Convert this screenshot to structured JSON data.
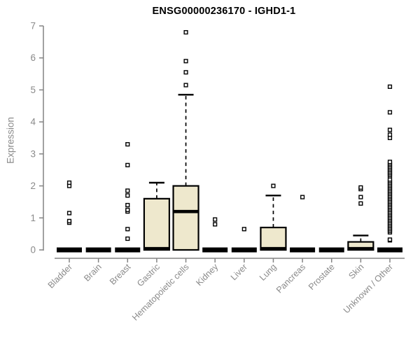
{
  "chart_data": {
    "type": "boxplot",
    "title": "ENSG00000236170 - IGHD1-1",
    "ylabel": "Expression",
    "xlabel": "",
    "ylim": [
      0,
      7
    ],
    "yticks": [
      0,
      1,
      2,
      3,
      4,
      5,
      6,
      7
    ],
    "grid": false,
    "legend": "none",
    "colors": {
      "box_fill": "#EEE8CD",
      "box_stroke": "#000000",
      "axis": "#848484",
      "tick_text": "#8a8a8a",
      "title_text": "#000000"
    },
    "categories": [
      "Bladder",
      "Brain",
      "Breast",
      "Gastric",
      "Hematopoietic cells",
      "Kidney",
      "Liver",
      "Lung",
      "Pancreas",
      "Prostate",
      "Skin",
      "Unknown / Other"
    ],
    "series": [
      {
        "category": "Bladder",
        "q1": 0,
        "median": 0,
        "q3": 0,
        "whisker_low": 0,
        "whisker_high": 0,
        "outliers": [
          0.85,
          0.9,
          1.15,
          2.0,
          2.1
        ]
      },
      {
        "category": "Brain",
        "q1": 0,
        "median": 0,
        "q3": 0,
        "whisker_low": 0,
        "whisker_high": 0,
        "outliers": []
      },
      {
        "category": "Breast",
        "q1": 0,
        "median": 0,
        "q3": 0,
        "whisker_low": 0,
        "whisker_high": 0,
        "outliers": [
          0.35,
          0.65,
          1.2,
          1.25,
          1.4,
          1.7,
          1.85,
          2.65,
          3.3
        ]
      },
      {
        "category": "Gastric",
        "q1": 0,
        "median": 0.04,
        "q3": 1.6,
        "whisker_low": 0,
        "whisker_high": 2.1,
        "outliers": []
      },
      {
        "category": "Hematopoietic cells",
        "q1": 0,
        "median": 1.2,
        "q3": 2.0,
        "whisker_low": 0,
        "whisker_high": 4.85,
        "outliers": [
          5.15,
          5.55,
          5.9,
          6.8
        ]
      },
      {
        "category": "Kidney",
        "q1": 0,
        "median": 0,
        "q3": 0,
        "whisker_low": 0,
        "whisker_high": 0,
        "outliers": [
          0.8,
          0.95
        ]
      },
      {
        "category": "Liver",
        "q1": 0,
        "median": 0,
        "q3": 0,
        "whisker_low": 0,
        "whisker_high": 0,
        "outliers": [
          0.65
        ]
      },
      {
        "category": "Lung",
        "q1": 0,
        "median": 0.04,
        "q3": 0.7,
        "whisker_low": 0,
        "whisker_high": 1.7,
        "outliers": [
          2.0
        ]
      },
      {
        "category": "Pancreas",
        "q1": 0,
        "median": 0,
        "q3": 0,
        "whisker_low": 0,
        "whisker_high": 0,
        "outliers": [
          1.65
        ]
      },
      {
        "category": "Prostate",
        "q1": 0,
        "median": 0,
        "q3": 0,
        "whisker_low": 0,
        "whisker_high": 0,
        "outliers": []
      },
      {
        "category": "Skin",
        "q1": 0,
        "median": 0.04,
        "q3": 0.25,
        "whisker_low": 0,
        "whisker_high": 0.45,
        "outliers": [
          1.45,
          1.65,
          1.9,
          1.95
        ]
      },
      {
        "category": "Unknown / Other",
        "q1": 0,
        "median": 0,
        "q3": 0,
        "whisker_low": 0,
        "whisker_high": 0,
        "outliers": [
          0.3,
          0.32,
          0.55,
          0.6,
          0.65,
          0.7,
          0.75,
          0.8,
          0.85,
          0.9,
          0.95,
          1.0,
          1.05,
          1.1,
          1.15,
          1.2,
          1.25,
          1.3,
          1.35,
          1.4,
          1.45,
          1.5,
          1.55,
          1.6,
          1.65,
          1.7,
          1.75,
          1.8,
          1.85,
          1.9,
          1.95,
          2.0,
          2.05,
          2.1,
          2.15,
          2.2,
          2.3,
          2.35,
          2.4,
          2.45,
          2.5,
          2.55,
          2.6,
          2.65,
          2.7,
          2.75,
          3.5,
          3.6,
          3.75,
          4.3,
          5.1
        ]
      }
    ]
  }
}
